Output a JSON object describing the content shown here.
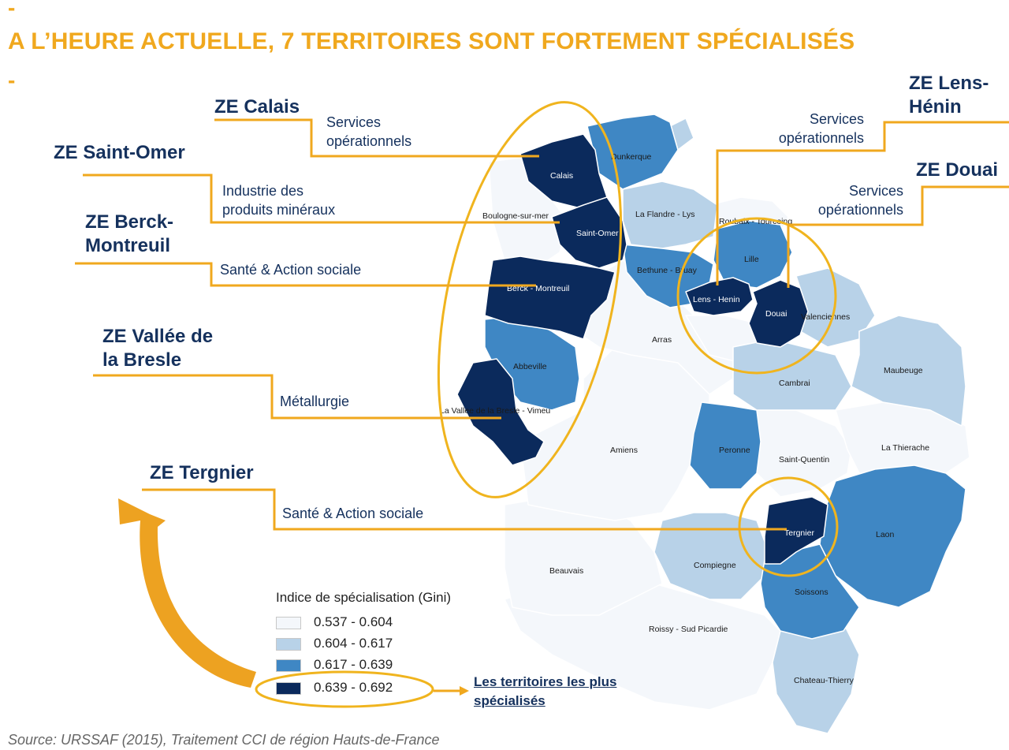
{
  "dash_top": "-",
  "title": "A L’HEURE ACTUELLE, 7 TERRITOIRES SONT FORTEMENT SPÉCIALISÉS",
  "dash_bottom": "-",
  "zones": {
    "calais": {
      "name": "ZE Calais",
      "sector": "Services opérationnels"
    },
    "saint_omer": {
      "name": "ZE Saint-Omer",
      "sector": "Industrie des produits minéraux"
    },
    "berck": {
      "name": "ZE Berck-Montreuil",
      "sector": "Santé & Action sociale"
    },
    "bresle": {
      "name": "ZE Vallée de la Bresle",
      "sector": "Métallurgie"
    },
    "tergnier": {
      "name": "ZE Tergnier",
      "sector": "Santé & Action sociale"
    },
    "lens": {
      "name": "ZE Lens-Hénin",
      "sector": "Services opérationnels"
    },
    "douai": {
      "name": "ZE Douai",
      "sector": "Services opérationnels"
    }
  },
  "map_labels": {
    "calais": "Calais",
    "dunkerque": "Dunkerque",
    "boulogne": "Boulogne-sur-mer",
    "saint_omer": "Saint-Omer",
    "flandre": "La Flandre - Lys",
    "roubaix": "Roubaix - Tourcoing",
    "lille": "Lille",
    "berck": "Berck - Montreuil",
    "bethune": "Bethune - Bruay",
    "lens": "Lens - Henin",
    "douai": "Douai",
    "valenciennes": "Valenciennes",
    "arras": "Arras",
    "maubeuge": "Maubeuge",
    "abbeville": "Abbeville",
    "cambrai": "Cambrai",
    "bresle": "La Vallee de la Bresle - Vimeu",
    "amiens": "Amiens",
    "peronne": "Peronne",
    "saint_quentin": "Saint-Quentin",
    "thierache": "La Thierache",
    "tergnier": "Tergnier",
    "laon": "Laon",
    "beauvais": "Beauvais",
    "compiegne": "Compiegne",
    "soissons": "Soissons",
    "roissy": "Roissy - Sud Picardie",
    "chateau": "Chateau-Thierry"
  },
  "legend": {
    "title": "Indice de spécialisation (Gini)",
    "items": [
      {
        "label": "0.537 - 0.604",
        "color": "#f4f7fb"
      },
      {
        "label": "0.604 - 0.617",
        "color": "#b8d2e8"
      },
      {
        "label": "0.617 - 0.639",
        "color": "#3f87c4"
      },
      {
        "label": "0.639 - 0.692",
        "color": "#0b2a5c"
      }
    ]
  },
  "highlight_link": "Les territoires les plus spécialisés",
  "source": "Source: URSSAF (2015), Traitement CCI de région Hauts-de-France",
  "colors": {
    "accent": "#f0a81e",
    "navy": "#15315d"
  }
}
